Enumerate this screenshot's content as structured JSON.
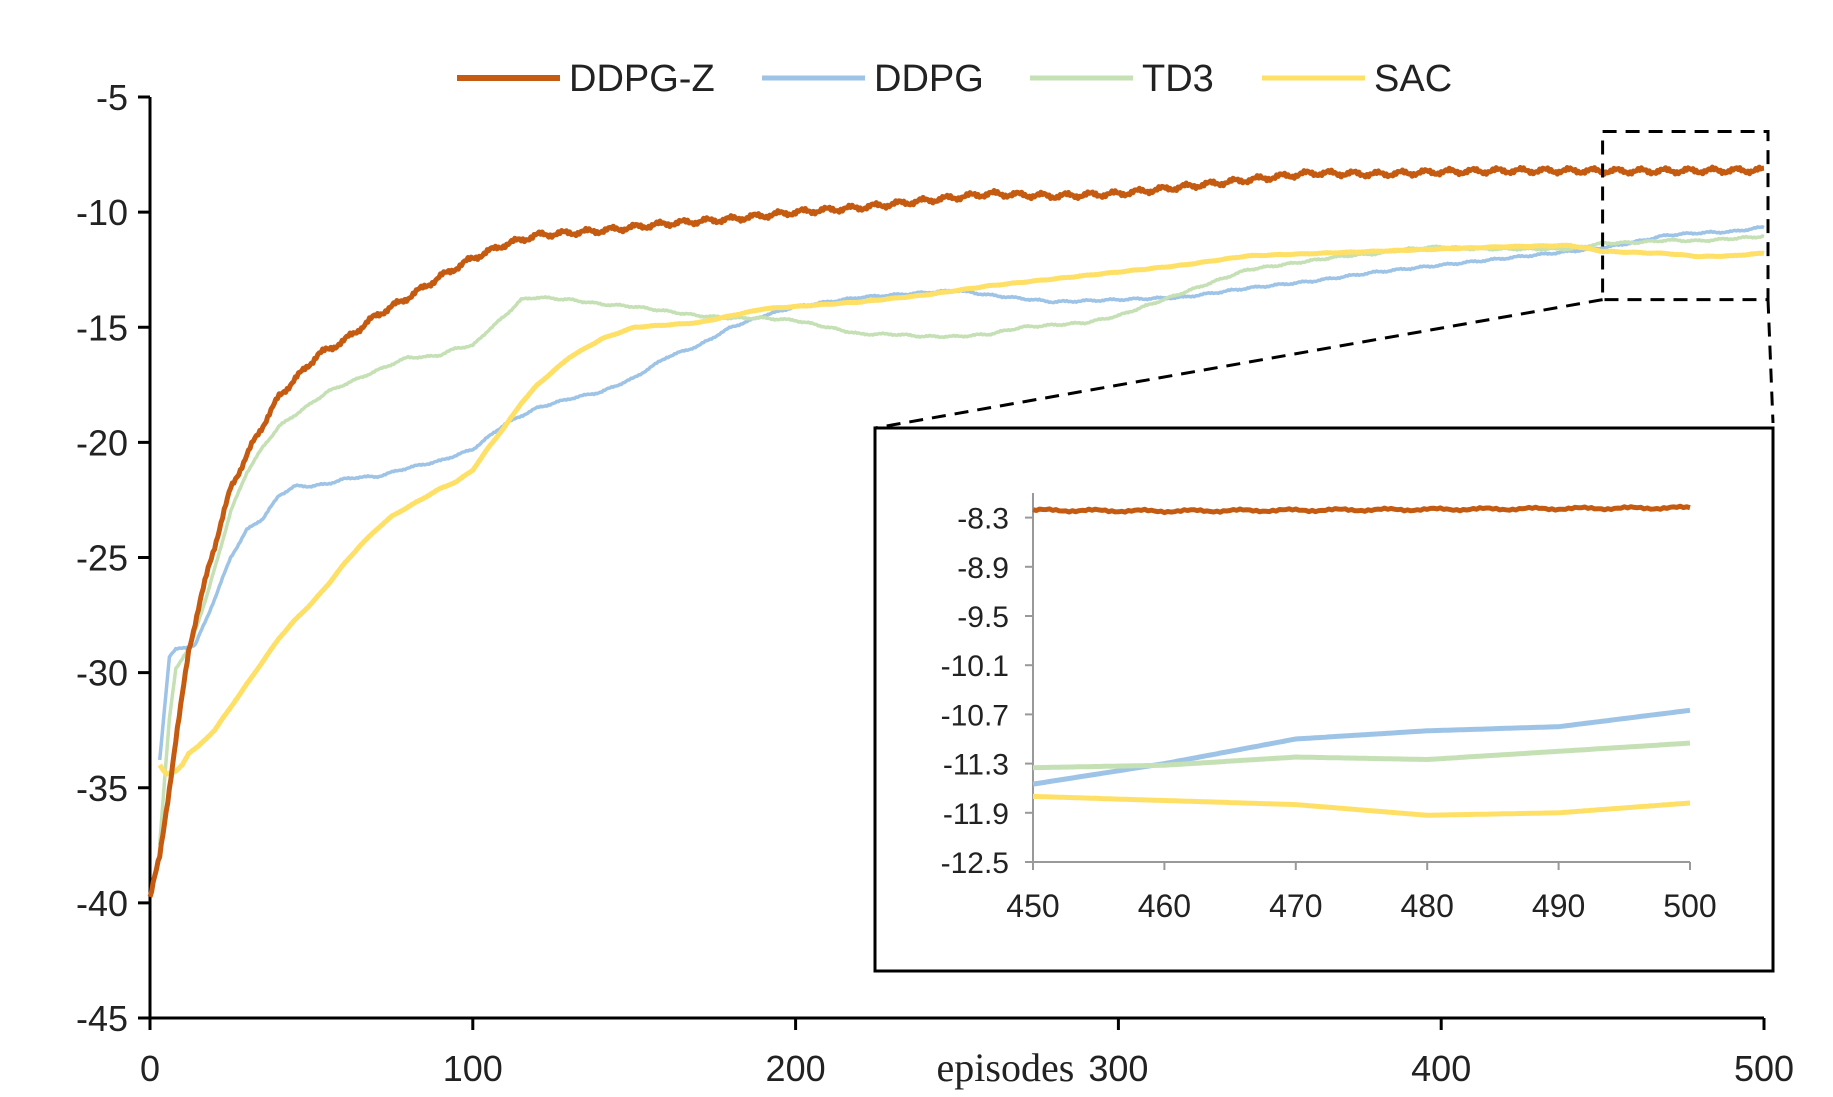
{
  "chart_data": {
    "type": "line",
    "title": "",
    "xlabel": "episodes",
    "ylabel": "",
    "xlim": [
      0,
      500
    ],
    "ylim": [
      -45,
      -5
    ],
    "xticks": [
      0,
      100,
      200,
      300,
      400,
      500
    ],
    "yticks": [
      -5,
      -10,
      -15,
      -20,
      -25,
      -30,
      -35,
      -40,
      -45
    ],
    "grid": false,
    "legend_position": "top",
    "series": [
      {
        "name": "DDPG-Z",
        "color": "#c55a11",
        "noise": 0.15,
        "x": [
          0,
          3,
          8,
          12,
          18,
          25,
          32,
          40,
          48,
          52,
          60,
          70,
          80,
          90,
          100,
          110,
          120,
          130,
          140,
          160,
          180,
          200,
          220,
          240,
          260,
          280,
          300,
          320,
          340,
          360,
          380,
          400,
          420,
          440,
          460,
          480,
          500
        ],
        "values": [
          -39.8,
          -38.0,
          -33.0,
          -29.0,
          -25.5,
          -22.0,
          -20.0,
          -18.0,
          -16.8,
          -16.2,
          -15.6,
          -14.5,
          -13.7,
          -12.8,
          -12.0,
          -11.4,
          -11.0,
          -10.9,
          -10.8,
          -10.5,
          -10.3,
          -10.0,
          -9.8,
          -9.5,
          -9.2,
          -9.3,
          -9.2,
          -8.9,
          -8.6,
          -8.3,
          -8.35,
          -8.25,
          -8.2,
          -8.2,
          -8.22,
          -8.2,
          -8.18
        ]
      },
      {
        "name": "DDPG",
        "color": "#9dc3e6",
        "noise": 0.05,
        "x": [
          3,
          6,
          8,
          14,
          18,
          20,
          25,
          30,
          35,
          40,
          45,
          50,
          55,
          60,
          65,
          70,
          75,
          80,
          90,
          100,
          110,
          120,
          130,
          140,
          150,
          160,
          170,
          180,
          190,
          200,
          210,
          220,
          230,
          240,
          250,
          260,
          280,
          300,
          320,
          340,
          360,
          380,
          400,
          420,
          440,
          450,
          460,
          470,
          480,
          490,
          500
        ],
        "values": [
          -33.8,
          -29.3,
          -29.0,
          -28.8,
          -27.5,
          -26.8,
          -25.0,
          -23.8,
          -23.3,
          -22.3,
          -21.9,
          -21.9,
          -21.8,
          -21.6,
          -21.5,
          -21.5,
          -21.3,
          -21.1,
          -20.8,
          -20.3,
          -19.2,
          -18.5,
          -18.1,
          -17.8,
          -17.2,
          -16.3,
          -15.8,
          -15.0,
          -14.5,
          -14.1,
          -13.9,
          -13.7,
          -13.6,
          -13.5,
          -13.4,
          -13.6,
          -13.9,
          -13.8,
          -13.7,
          -13.3,
          -13.0,
          -12.6,
          -12.3,
          -12.0,
          -11.7,
          -11.55,
          -11.3,
          -11.0,
          -10.9,
          -10.85,
          -10.65
        ]
      },
      {
        "name": "TD3",
        "color": "#c5e0b4",
        "noise": 0.05,
        "x": [
          3,
          6,
          8,
          12,
          18,
          25,
          30,
          35,
          40,
          45,
          50,
          55,
          60,
          65,
          70,
          75,
          80,
          85,
          90,
          95,
          100,
          105,
          110,
          115,
          120,
          130,
          140,
          150,
          160,
          170,
          180,
          190,
          200,
          210,
          220,
          230,
          240,
          250,
          260,
          270,
          280,
          290,
          300,
          310,
          320,
          330,
          340,
          350,
          360,
          370,
          380,
          390,
          400,
          410,
          420,
          430,
          440,
          450,
          460,
          470,
          480,
          490,
          500
        ],
        "values": [
          -37.5,
          -32.0,
          -29.8,
          -29.0,
          -26.5,
          -23.0,
          -21.3,
          -20.2,
          -19.3,
          -18.8,
          -18.3,
          -17.8,
          -17.5,
          -17.2,
          -16.9,
          -16.6,
          -16.3,
          -16.3,
          -16.2,
          -15.9,
          -15.8,
          -15.1,
          -14.5,
          -13.8,
          -13.7,
          -13.8,
          -14.0,
          -14.1,
          -14.3,
          -14.5,
          -14.6,
          -14.6,
          -14.7,
          -15.0,
          -15.3,
          -15.3,
          -15.4,
          -15.4,
          -15.3,
          -15.0,
          -14.9,
          -14.8,
          -14.5,
          -14.0,
          -13.5,
          -13.0,
          -12.5,
          -12.3,
          -12.1,
          -11.9,
          -11.8,
          -11.6,
          -11.5,
          -11.6,
          -11.6,
          -11.6,
          -11.6,
          -11.35,
          -11.32,
          -11.22,
          -11.25,
          -11.15,
          -11.05
        ]
      },
      {
        "name": "SAC",
        "color": "#ffe066",
        "noise": 0.02,
        "x": [
          3,
          5,
          8,
          10,
          12,
          15,
          20,
          25,
          30,
          35,
          40,
          45,
          50,
          55,
          60,
          65,
          70,
          75,
          80,
          85,
          90,
          95,
          100,
          105,
          110,
          115,
          120,
          130,
          140,
          150,
          160,
          170,
          180,
          190,
          200,
          220,
          240,
          260,
          280,
          300,
          320,
          340,
          360,
          380,
          400,
          420,
          440,
          450,
          460,
          470,
          480,
          490,
          500
        ],
        "values": [
          -34.0,
          -34.4,
          -34.3,
          -34.0,
          -33.5,
          -33.2,
          -32.5,
          -31.5,
          -30.5,
          -29.5,
          -28.5,
          -27.7,
          -27.0,
          -26.2,
          -25.3,
          -24.5,
          -23.8,
          -23.2,
          -22.8,
          -22.4,
          -22.0,
          -21.7,
          -21.2,
          -20.2,
          -19.3,
          -18.3,
          -17.5,
          -16.3,
          -15.5,
          -15.0,
          -14.9,
          -14.8,
          -14.5,
          -14.2,
          -14.1,
          -13.9,
          -13.6,
          -13.2,
          -12.9,
          -12.6,
          -12.3,
          -11.9,
          -11.8,
          -11.7,
          -11.6,
          -11.5,
          -11.45,
          -11.7,
          -11.75,
          -11.8,
          -11.93,
          -11.9,
          -11.78
        ]
      }
    ],
    "inset": {
      "xlim": [
        450,
        500
      ],
      "ylim": [
        -12.5,
        -8.0
      ],
      "xticks": [
        450,
        460,
        470,
        480,
        490,
        500
      ],
      "yticks": [
        -8.3,
        -8.9,
        -9.5,
        -10.1,
        -10.7,
        -11.3,
        -11.9,
        -12.5
      ],
      "xtick_labels": [
        "450",
        "460",
        "470",
        "480",
        "490",
        "500"
      ],
      "ytick_labels": [
        "-8.3",
        "-8.9",
        "-9.5",
        "-10.1",
        "-10.7",
        "-11.3",
        "-11.9",
        "-12.5"
      ],
      "zoom_window": {
        "x": [
          450,
          500
        ],
        "y": [
          -13.8,
          -6.5
        ]
      }
    }
  },
  "legend": {
    "items": [
      {
        "label": "DDPG-Z",
        "color": "#c55a11"
      },
      {
        "label": "DDPG",
        "color": "#9dc3e6"
      },
      {
        "label": "TD3",
        "color": "#c5e0b4"
      },
      {
        "label": "SAC",
        "color": "#ffe066"
      }
    ]
  },
  "axes": {
    "xtick_labels": [
      "0",
      "100",
      "200",
      "300",
      "400",
      "500"
    ],
    "ytick_labels": [
      "-5",
      "-10",
      "-15",
      "-20",
      "-25",
      "-30",
      "-35",
      "-40",
      "-45"
    ],
    "xlabel": "episodes"
  }
}
